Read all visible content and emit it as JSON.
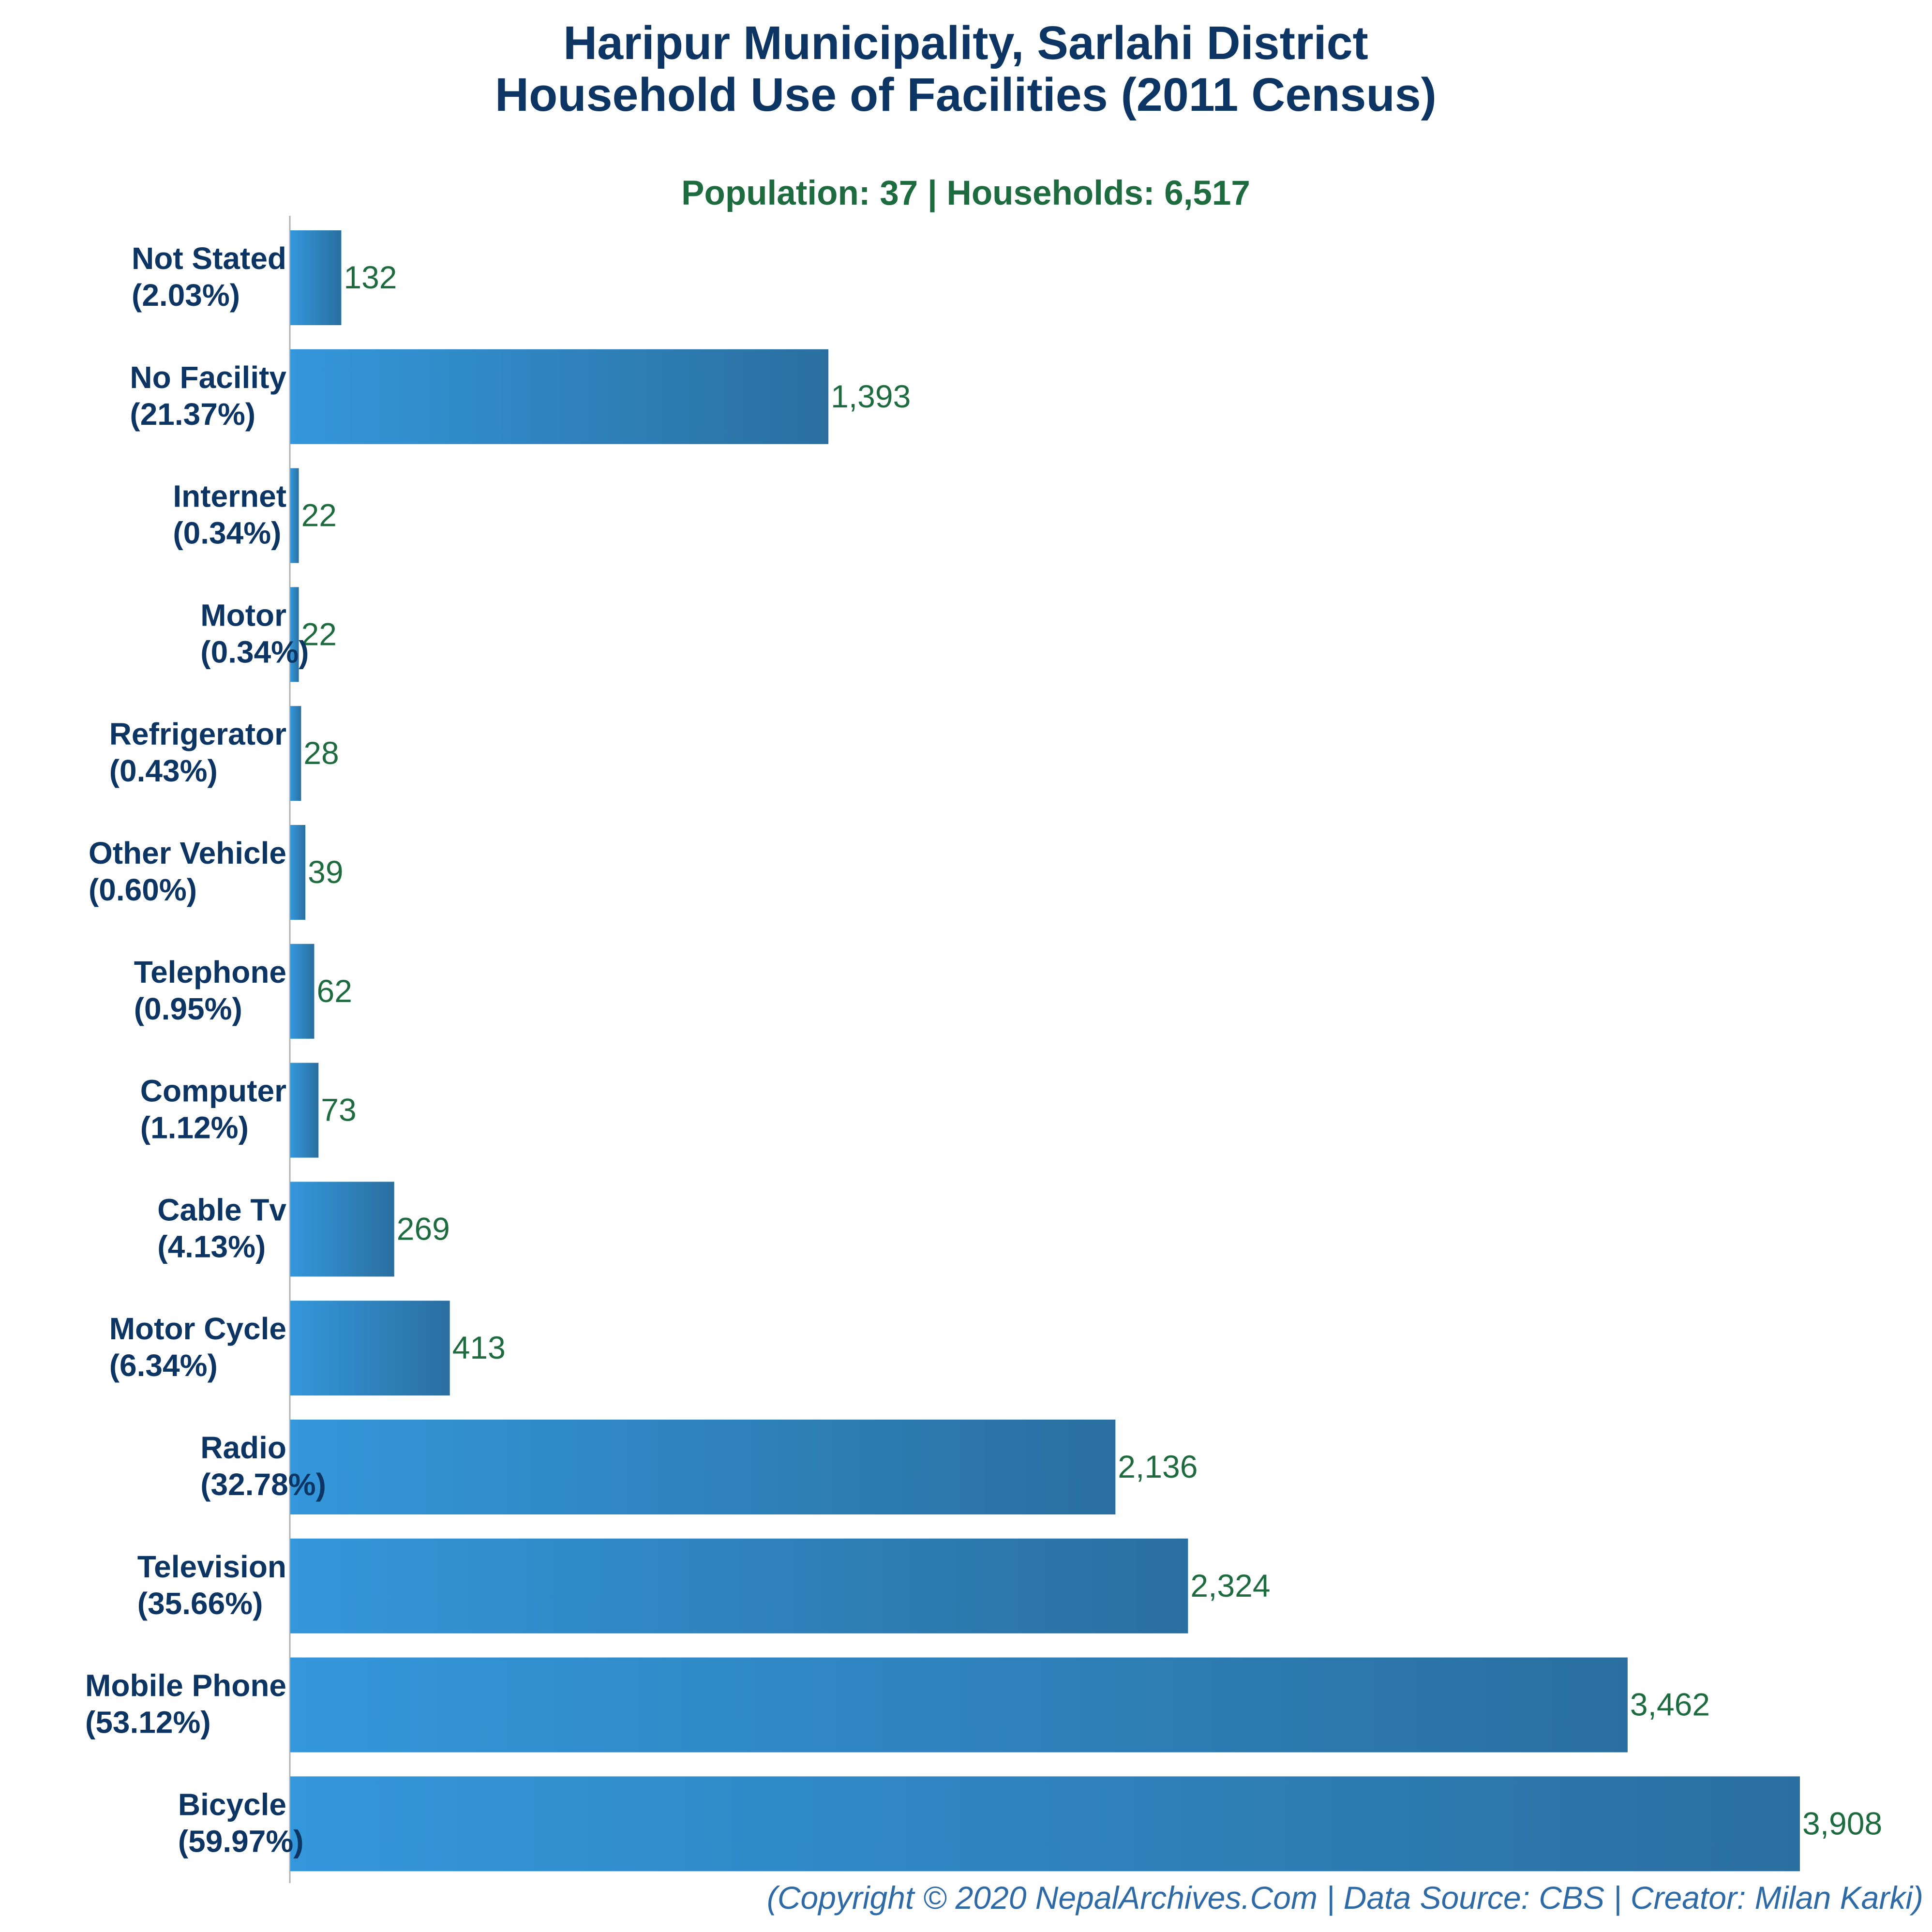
{
  "chart_data": {
    "type": "bar",
    "orientation": "horizontal",
    "title_lines": [
      "Haripur Municipality, Sarlahi District",
      "Household Use of Facilities (2011 Census)"
    ],
    "subtitle": "Population: 37 | Households: 6,517",
    "categories": [
      "Not Stated",
      "No Facility",
      "Internet",
      "Motor",
      "Refrigerator",
      "Other Vehicle",
      "Telephone",
      "Computer",
      "Cable Tv",
      "Motor Cycle",
      "Radio",
      "Television",
      "Mobile Phone",
      "Bicycle"
    ],
    "percent_labels": [
      "(2.03%)",
      "(21.37%)",
      "(0.34%)",
      "(0.34%)",
      "(0.43%)",
      "(0.60%)",
      "(0.95%)",
      "(1.12%)",
      "(4.13%)",
      "(6.34%)",
      "(32.78%)",
      "(35.66%)",
      "(53.12%)",
      "(59.97%)"
    ],
    "values": [
      132,
      1393,
      22,
      22,
      28,
      39,
      62,
      73,
      269,
      413,
      2136,
      2324,
      3462,
      3908
    ],
    "value_labels": [
      "132",
      "1,393",
      "22",
      "22",
      "28",
      "39",
      "62",
      "73",
      "269",
      "413",
      "2,136",
      "2,324",
      "3,462",
      "3,908"
    ],
    "xlim": [
      0,
      3908
    ],
    "grid": false,
    "legend": "none",
    "colors": {
      "bar_light": "#3497db",
      "bar_dark": "#2a6fa0",
      "title": "#0d3563",
      "value_text": "#1e6b3f"
    }
  },
  "footer": "(Copyright © 2020 NepalArchives.Com | Data Source: CBS | Creator: Milan Karki)"
}
